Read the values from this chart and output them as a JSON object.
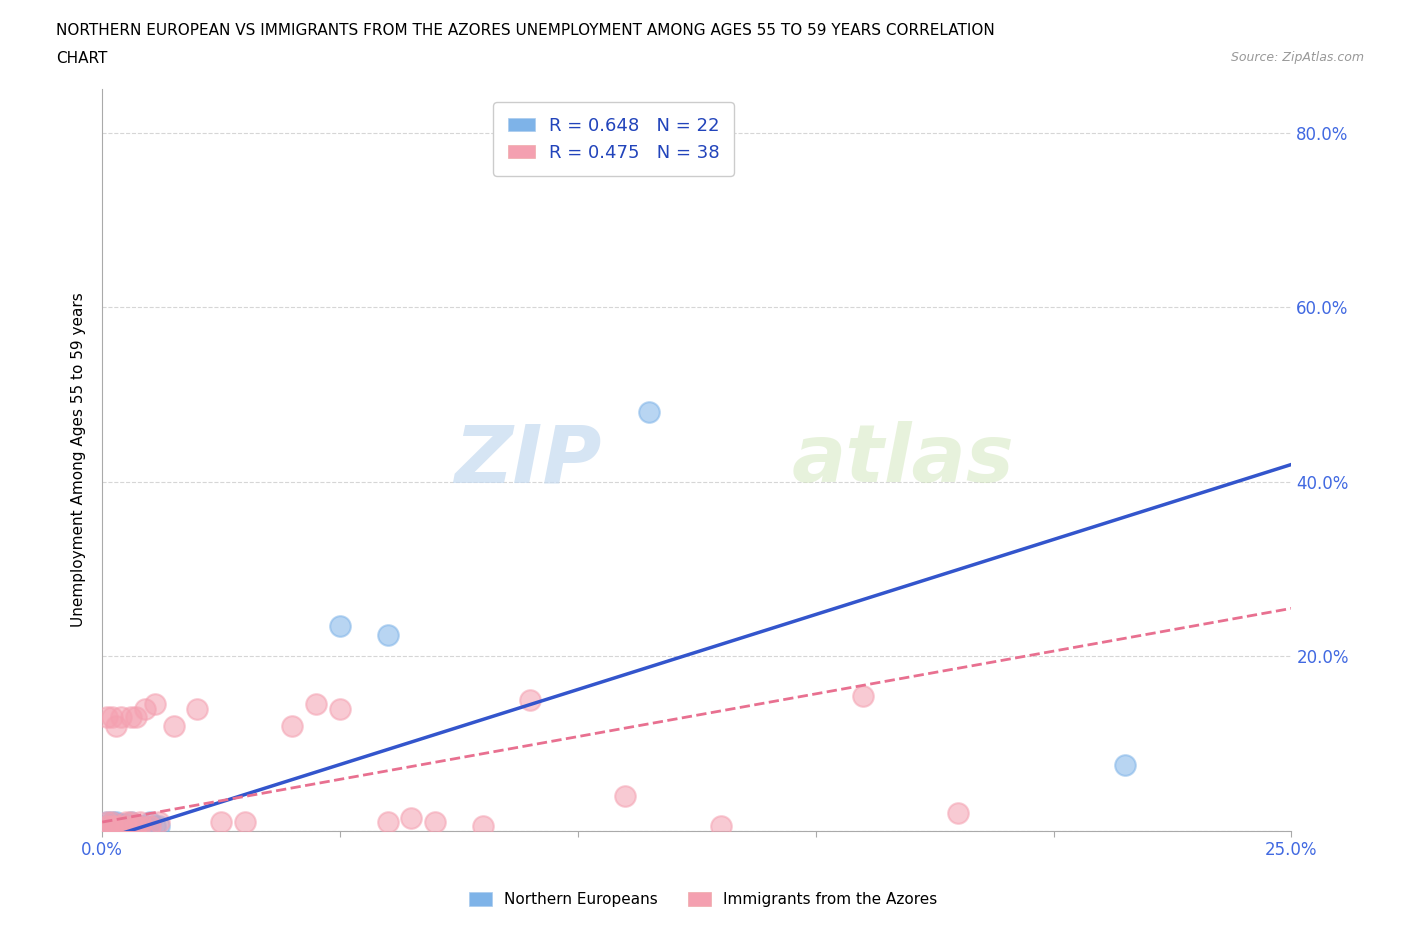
{
  "title_line1": "NORTHERN EUROPEAN VS IMMIGRANTS FROM THE AZORES UNEMPLOYMENT AMONG AGES 55 TO 59 YEARS CORRELATION",
  "title_line2": "CHART",
  "source": "Source: ZipAtlas.com",
  "ylabel": "Unemployment Among Ages 55 to 59 years",
  "xlim": [
    0.0,
    0.25
  ],
  "ylim": [
    0.0,
    0.85
  ],
  "xticks": [
    0.0,
    0.05,
    0.1,
    0.15,
    0.2,
    0.25
  ],
  "yticks": [
    0.0,
    0.2,
    0.4,
    0.6,
    0.8
  ],
  "ytick_labels_right": [
    "",
    "20.0%",
    "40.0%",
    "60.0%",
    "80.0%"
  ],
  "xtick_labels": [
    "0.0%",
    "",
    "",
    "",
    "",
    "25.0%"
  ],
  "blue_R": 0.648,
  "blue_N": 22,
  "pink_R": 0.475,
  "pink_N": 38,
  "blue_color": "#7EB3E8",
  "pink_color": "#F4A0B0",
  "blue_line_color": "#3355CC",
  "pink_line_color": "#E87090",
  "watermark_color": "#d5e8f5",
  "background_color": "#ffffff",
  "blue_scatter_x": [
    0.001,
    0.001,
    0.002,
    0.002,
    0.003,
    0.003,
    0.004,
    0.004,
    0.005,
    0.005,
    0.006,
    0.006,
    0.007,
    0.008,
    0.009,
    0.01,
    0.011,
    0.012,
    0.05,
    0.06,
    0.115,
    0.215
  ],
  "blue_scatter_y": [
    0.005,
    0.01,
    0.005,
    0.01,
    0.005,
    0.01,
    0.005,
    0.008,
    0.005,
    0.008,
    0.005,
    0.01,
    0.005,
    0.005,
    0.005,
    0.01,
    0.005,
    0.005,
    0.235,
    0.225,
    0.48,
    0.075
  ],
  "pink_scatter_x": [
    0.001,
    0.001,
    0.001,
    0.002,
    0.002,
    0.002,
    0.003,
    0.003,
    0.004,
    0.004,
    0.005,
    0.005,
    0.006,
    0.006,
    0.007,
    0.007,
    0.008,
    0.008,
    0.009,
    0.01,
    0.011,
    0.012,
    0.015,
    0.02,
    0.025,
    0.03,
    0.04,
    0.045,
    0.05,
    0.06,
    0.065,
    0.07,
    0.08,
    0.09,
    0.11,
    0.13,
    0.16,
    0.18
  ],
  "pink_scatter_x_approx": true,
  "pink_scatter_y": [
    0.005,
    0.01,
    0.13,
    0.005,
    0.01,
    0.13,
    0.005,
    0.12,
    0.005,
    0.13,
    0.01,
    0.005,
    0.01,
    0.13,
    0.005,
    0.13,
    0.01,
    0.005,
    0.14,
    0.005,
    0.145,
    0.01,
    0.12,
    0.14,
    0.01,
    0.01,
    0.12,
    0.145,
    0.14,
    0.01,
    0.015,
    0.01,
    0.005,
    0.15,
    0.04,
    0.005,
    0.155,
    0.02
  ],
  "blue_line_x0": 0.0,
  "blue_line_y0": -0.01,
  "blue_line_x1": 0.25,
  "blue_line_y1": 0.42,
  "pink_line_x0": 0.0,
  "pink_line_y0": 0.01,
  "pink_line_x1": 0.25,
  "pink_line_y1": 0.255
}
